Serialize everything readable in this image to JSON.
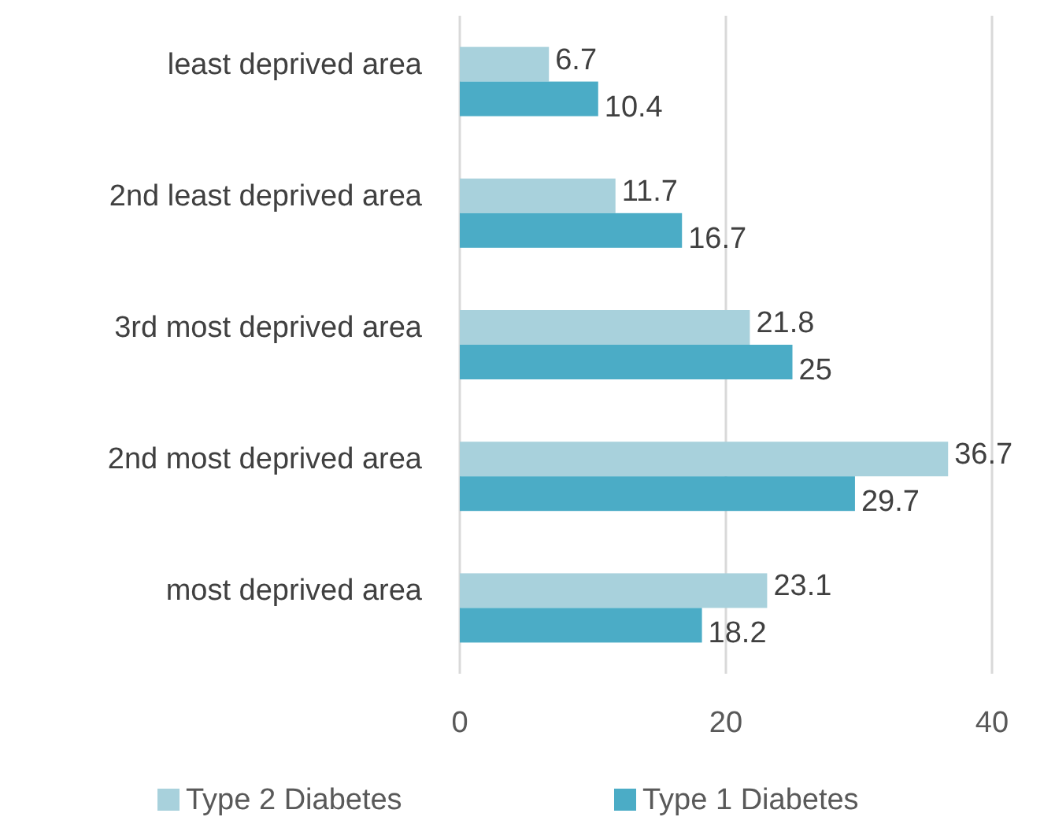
{
  "chart_data": {
    "type": "bar",
    "orientation": "horizontal",
    "categories": [
      "least deprived area",
      "2nd least deprived area",
      "3rd most deprived area",
      "2nd most deprived area",
      "most deprived area"
    ],
    "series": [
      {
        "name": "Type 2 Diabetes",
        "color": "#a8d1dc",
        "values": [
          6.7,
          11.7,
          21.8,
          36.7,
          23.1
        ]
      },
      {
        "name": "Type 1 Diabetes",
        "color": "#4bacc6",
        "values": [
          10.4,
          16.7,
          25,
          29.7,
          18.2
        ]
      }
    ],
    "xlim": [
      0,
      40
    ],
    "xticks": [
      0,
      20,
      40
    ],
    "grid": "x",
    "legend": "bottom",
    "data_labels": true
  }
}
